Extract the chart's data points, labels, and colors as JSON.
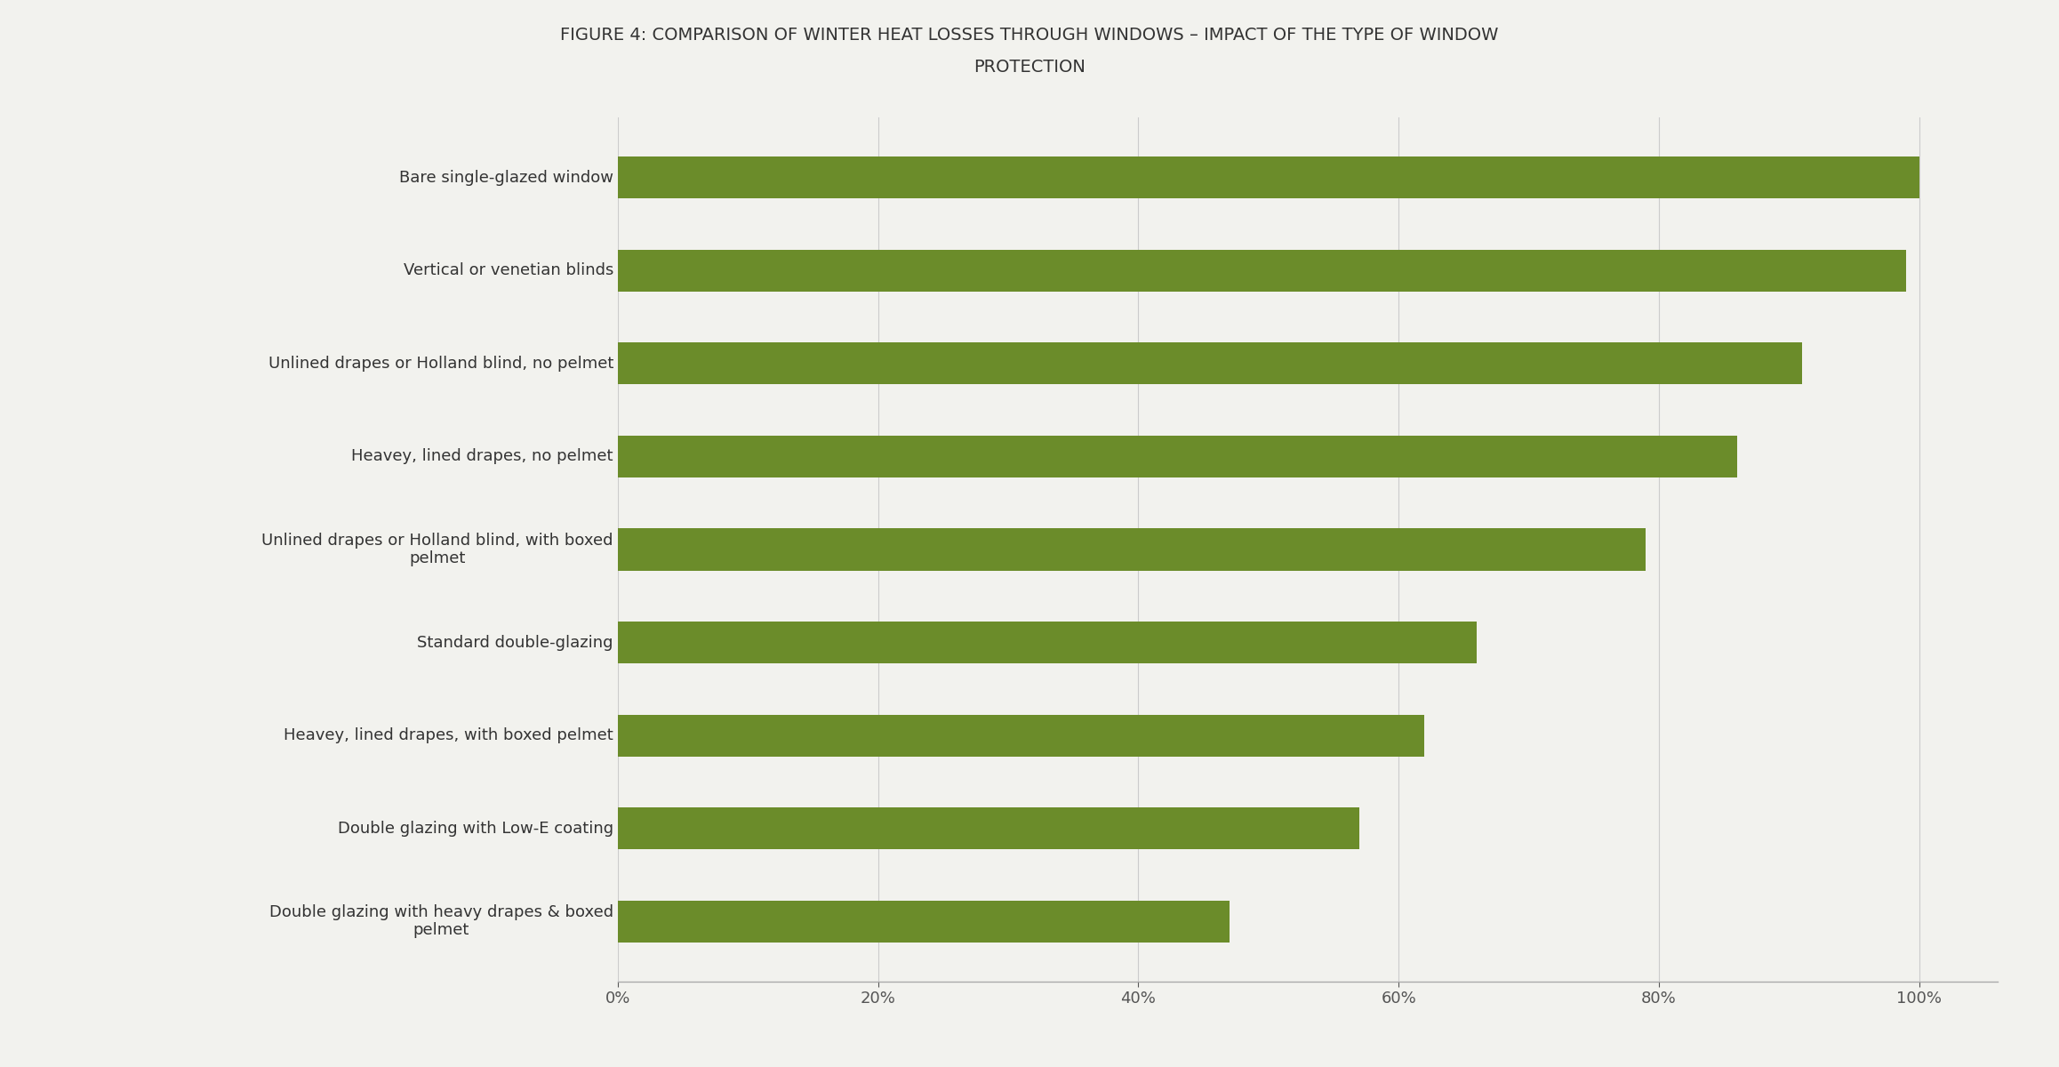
{
  "title_line1": "FIGURE 4: COMPARISON OF WINTER HEAT LOSSES THROUGH WINDOWS – IMPACT OF THE TYPE OF WINDOW",
  "title_line2": "PROTECTION",
  "categories": [
    "Double glazing with heavy drapes & boxed\npelmet",
    "Double glazing with Low-E coating",
    "Heavey, lined drapes, with boxed pelmet",
    "Standard double-glazing",
    "Unlined drapes or Holland blind, with boxed\npelmet",
    "Heavey, lined drapes, no pelmet",
    "Unlined drapes or Holland blind, no pelmet",
    "Vertical or venetian blinds",
    "Bare single-glazed window"
  ],
  "values": [
    47,
    57,
    62,
    66,
    79,
    86,
    91,
    99,
    100
  ],
  "bar_color": "#6b8c2a",
  "background_color": "#f2f2ee",
  "plot_bg_color": "#f2f2ee",
  "title_fontsize": 14,
  "label_fontsize": 13,
  "tick_fontsize": 13,
  "xlim": [
    0,
    106
  ],
  "xticks": [
    0,
    20,
    40,
    60,
    80,
    100
  ],
  "xtick_labels": [
    "0%",
    "20%",
    "40%",
    "60%",
    "80%",
    "100%"
  ],
  "bar_height": 0.45
}
